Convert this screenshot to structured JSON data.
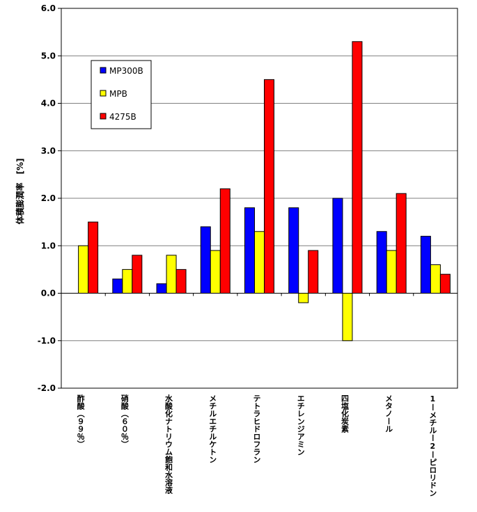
{
  "chart_data": {
    "type": "bar",
    "categories": [
      "酢酸（９９％）",
      "硝酸（６０％）",
      "水酸化ナトリウム飽和水溶液",
      "メチルエチルケトン",
      "テトラヒドロフラン",
      "エチレンジアミン",
      "四塩化炭素",
      "メタノール",
      "1ーメチルー2ーピロリドン"
    ],
    "series": [
      {
        "name": "MP300B",
        "color": "#0000ff",
        "values": [
          null,
          0.3,
          0.2,
          1.4,
          1.8,
          1.8,
          2.0,
          1.3,
          1.2
        ]
      },
      {
        "name": "MPB",
        "color": "#ffff00",
        "values": [
          1.0,
          0.5,
          0.8,
          0.9,
          1.3,
          -0.2,
          -1.0,
          0.9,
          0.6
        ]
      },
      {
        "name": "4275B",
        "color": "#ff0000",
        "values": [
          1.5,
          0.8,
          0.5,
          2.2,
          4.5,
          0.9,
          5.3,
          2.1,
          0.4
        ]
      }
    ],
    "ylabel": "体積膨潤率　[%]",
    "xlabel": "",
    "ylim": [
      -2.0,
      6.0
    ],
    "yticks": [
      "-2.0",
      "-1.0",
      "0.0",
      "1.0",
      "2.0",
      "3.0",
      "4.0",
      "5.0",
      "6.0"
    ],
    "grid": true,
    "legend_position": "top-left"
  }
}
